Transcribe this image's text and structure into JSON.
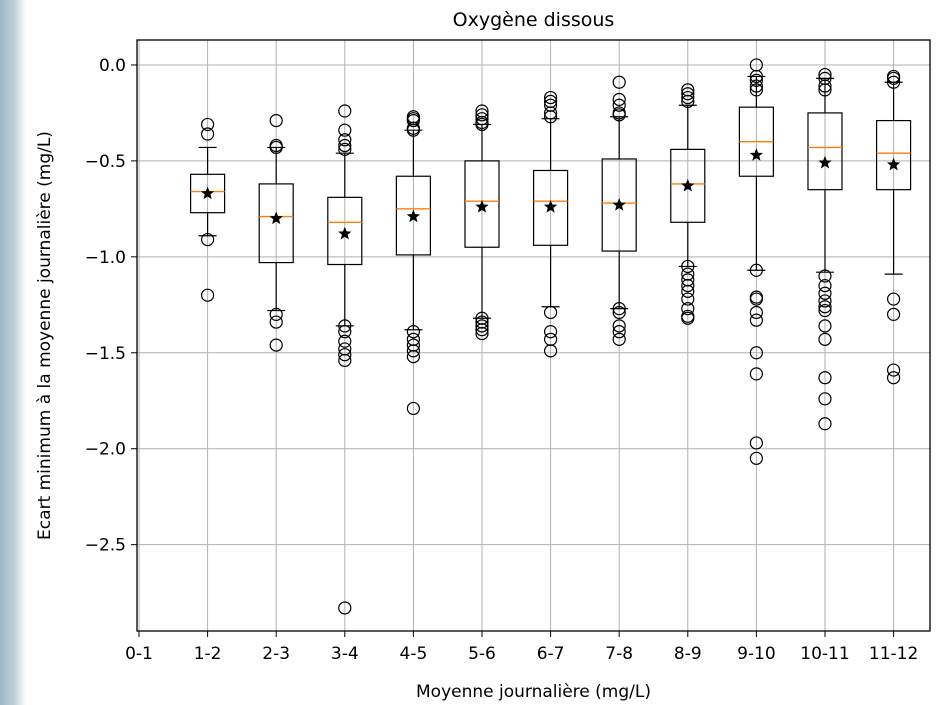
{
  "chart_data": {
    "type": "boxplot",
    "title": "Oxygène dissous",
    "xlabel": "Moyenne journalière (mg/L)",
    "ylabel": "Ecart minimum à la moyenne journalière (mg/L)",
    "categories": [
      "0-1",
      "1-2",
      "2-3",
      "3-4",
      "4-5",
      "5-6",
      "6-7",
      "7-8",
      "8-9",
      "9-10",
      "10-11",
      "11-12"
    ],
    "ylim": [
      -2.95,
      0.13
    ],
    "yticks": [
      0.0,
      -0.5,
      -1.0,
      -1.5,
      -2.0,
      -2.5
    ],
    "ytick_labels": [
      "0.0",
      "−0.5",
      "−1.0",
      "−1.5",
      "−2.0",
      "−2.5"
    ],
    "grid": true,
    "colors": {
      "median": "#ff7f0e",
      "box": "#000000",
      "grid": "#b0b0b0"
    },
    "mean_marker": "star",
    "boxes": [
      {
        "category": "1-2",
        "q1": -0.77,
        "median": -0.66,
        "q3": -0.57,
        "whisker_low": -0.89,
        "whisker_high": -0.43,
        "mean": -0.67,
        "outliers": [
          -0.31,
          -0.36,
          -0.91,
          -1.2
        ]
      },
      {
        "category": "2-3",
        "q1": -1.03,
        "median": -0.79,
        "q3": -0.62,
        "whisker_low": -1.28,
        "whisker_high": -0.43,
        "mean": -0.8,
        "outliers": [
          -0.29,
          -0.42,
          -0.43,
          -1.3,
          -1.34,
          -1.46
        ]
      },
      {
        "category": "3-4",
        "q1": -1.04,
        "median": -0.82,
        "q3": -0.69,
        "whisker_low": -1.36,
        "whisker_high": -0.46,
        "mean": -0.88,
        "outliers": [
          -0.24,
          -0.34,
          -0.39,
          -0.42,
          -0.44,
          -1.36,
          -1.39,
          -1.44,
          -1.48,
          -1.51,
          -1.54,
          -2.83
        ]
      },
      {
        "category": "4-5",
        "q1": -0.99,
        "median": -0.75,
        "q3": -0.58,
        "whisker_low": -1.38,
        "whisker_high": -0.34,
        "mean": -0.79,
        "outliers": [
          -0.27,
          -0.28,
          -0.29,
          -0.33,
          -0.34,
          -1.39,
          -1.43,
          -1.46,
          -1.49,
          -1.52,
          -1.79
        ]
      },
      {
        "category": "5-6",
        "q1": -0.95,
        "median": -0.71,
        "q3": -0.5,
        "whisker_low": -1.32,
        "whisker_high": -0.31,
        "mean": -0.74,
        "outliers": [
          -0.24,
          -0.26,
          -0.28,
          -0.3,
          -0.31,
          -1.32,
          -1.34,
          -1.36,
          -1.38,
          -1.4
        ]
      },
      {
        "category": "6-7",
        "q1": -0.94,
        "median": -0.71,
        "q3": -0.55,
        "whisker_low": -1.26,
        "whisker_high": -0.28,
        "mean": -0.74,
        "outliers": [
          -0.17,
          -0.19,
          -0.21,
          -0.25,
          -0.27,
          -1.29,
          -1.39,
          -1.43,
          -1.49
        ]
      },
      {
        "category": "7-8",
        "q1": -0.97,
        "median": -0.72,
        "q3": -0.49,
        "whisker_low": -1.27,
        "whisker_high": -0.27,
        "mean": -0.73,
        "outliers": [
          -0.09,
          -0.18,
          -0.21,
          -0.25,
          -0.26,
          -1.27,
          -1.29,
          -1.36,
          -1.39,
          -1.43
        ]
      },
      {
        "category": "8-9",
        "q1": -0.82,
        "median": -0.62,
        "q3": -0.44,
        "whisker_low": -1.05,
        "whisker_high": -0.21,
        "mean": -0.63,
        "outliers": [
          -0.13,
          -0.15,
          -0.17,
          -0.19,
          -1.05,
          -1.09,
          -1.12,
          -1.15,
          -1.18,
          -1.22,
          -1.27,
          -1.31,
          -1.32
        ]
      },
      {
        "category": "9-10",
        "q1": -0.58,
        "median": -0.4,
        "q3": -0.22,
        "whisker_low": -1.07,
        "whisker_high": -0.06,
        "mean": -0.47,
        "outliers": [
          0.0,
          -0.06,
          -0.08,
          -0.11,
          -0.13,
          -1.07,
          -1.21,
          -1.22,
          -1.29,
          -1.33,
          -1.5,
          -1.61,
          -1.97,
          -2.05
        ]
      },
      {
        "category": "10-11",
        "q1": -0.65,
        "median": -0.43,
        "q3": -0.25,
        "whisker_low": -1.08,
        "whisker_high": -0.07,
        "mean": -0.51,
        "outliers": [
          -0.05,
          -0.07,
          -0.11,
          -0.13,
          -1.1,
          -1.15,
          -1.19,
          -1.23,
          -1.26,
          -1.28,
          -1.36,
          -1.43,
          -1.63,
          -1.74,
          -1.87
        ]
      },
      {
        "category": "11-12",
        "q1": -0.65,
        "median": -0.46,
        "q3": -0.29,
        "whisker_low": -1.09,
        "whisker_high": -0.09,
        "mean": -0.52,
        "outliers": [
          -0.06,
          -0.07,
          -0.09,
          -1.22,
          -1.3,
          -1.59,
          -1.63
        ]
      }
    ]
  }
}
